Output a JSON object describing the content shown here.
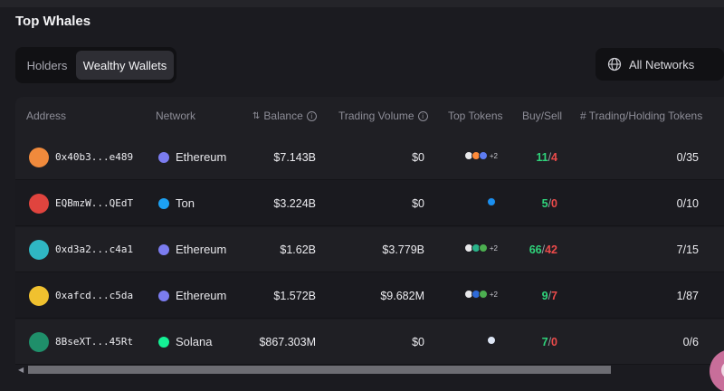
{
  "section": {
    "title": "Top Whales"
  },
  "tabs": {
    "holders": "Holders",
    "wealthy": "Wealthy Wallets"
  },
  "filter": {
    "label": "All Networks"
  },
  "columns": {
    "address": "Address",
    "network": "Network",
    "balance": "Balance",
    "volume": "Trading Volume",
    "top_tokens": "Top Tokens",
    "buy_sell": "Buy/Sell",
    "holding": "# Trading/Holding Tokens"
  },
  "rows": [
    {
      "address": "0x40b3...e489",
      "network": "Ethereum",
      "network_color": "#7b7cf0",
      "balance": "$7.143B",
      "volume": "$0",
      "tokens_more": "+2",
      "buy": "11",
      "sell": "4",
      "holding": "0/35",
      "avatar_color": "#f08a3c",
      "tokens": [
        "#e8e8ea",
        "#ff8b3a",
        "#5d7cf2"
      ]
    },
    {
      "address": "EQBmzW...QEdT",
      "network": "Ton",
      "network_color": "#1da1f2",
      "balance": "$3.224B",
      "volume": "$0",
      "tokens_more": "",
      "buy": "5",
      "sell": "0",
      "holding": "0/10",
      "avatar_color": "#e0443e",
      "tokens": [
        "#1a8ff0"
      ]
    },
    {
      "address": "0xd3a2...c4a1",
      "network": "Ethereum",
      "network_color": "#7b7cf0",
      "balance": "$1.62B",
      "volume": "$3.779B",
      "tokens_more": "+2",
      "buy": "66",
      "sell": "42",
      "holding": "7/15",
      "avatar_color": "#2fb6c3",
      "tokens": [
        "#e8e8ea",
        "#29b38a",
        "#4caf50"
      ]
    },
    {
      "address": "0xafcd...c5da",
      "network": "Ethereum",
      "network_color": "#7b7cf0",
      "balance": "$1.572B",
      "volume": "$9.682M",
      "tokens_more": "+2",
      "buy": "9",
      "sell": "7",
      "holding": "1/87",
      "avatar_color": "#f0c12f",
      "tokens": [
        "#e8e8ea",
        "#2e6ad8",
        "#4caf50"
      ]
    },
    {
      "address": "8BseXT...45Rt",
      "network": "Solana",
      "network_color": "#14f195",
      "balance": "$867.303M",
      "volume": "$0",
      "tokens_more": "",
      "buy": "7",
      "sell": "0",
      "holding": "0/6",
      "avatar_color": "#1f8f6a",
      "tokens": [
        "#dde6f5"
      ]
    }
  ]
}
